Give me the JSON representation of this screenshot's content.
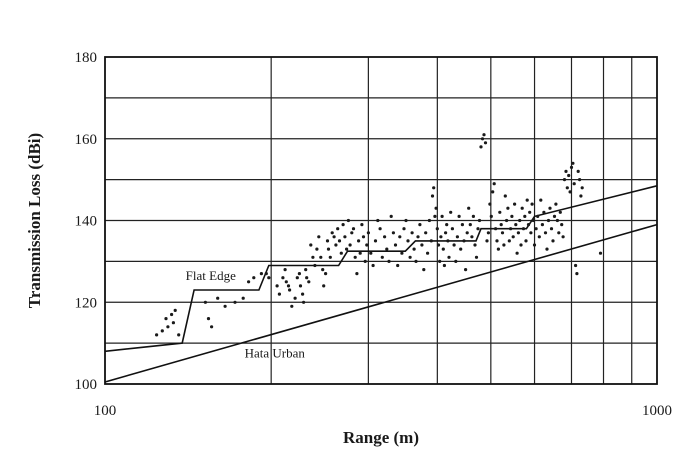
{
  "chart_data": {
    "type": "scatter",
    "title": "",
    "xlabel": "Range (m)",
    "ylabel": "Transmission Loss (dBi)",
    "x_scale": "log",
    "xlim": [
      100,
      1000
    ],
    "ylim": [
      100,
      180
    ],
    "x_tick_labels": [
      {
        "value": 100,
        "label": "100"
      },
      {
        "value": 1000,
        "label": "1000"
      }
    ],
    "y_tick_labels": [
      {
        "value": 100,
        "label": "100"
      },
      {
        "value": 120,
        "label": "120"
      },
      {
        "value": 140,
        "label": "140"
      },
      {
        "value": 160,
        "label": "160"
      },
      {
        "value": 180,
        "label": "180"
      }
    ],
    "grid": true,
    "annotations": [
      {
        "text": "Flat Edge",
        "x": 140,
        "y": 125.5
      },
      {
        "text": "Hata Urban",
        "x": 179,
        "y": 106.5
      }
    ],
    "lines": [
      {
        "label": "Flat Edge",
        "points": [
          [
            100,
            108
          ],
          [
            138,
            110
          ],
          [
            145,
            123
          ],
          [
            190,
            123
          ],
          [
            198,
            129
          ],
          [
            265,
            129
          ],
          [
            275,
            132.5
          ],
          [
            350,
            132.5
          ],
          [
            365,
            135
          ],
          [
            470,
            135
          ],
          [
            480,
            138
          ],
          [
            580,
            138
          ],
          [
            600,
            141
          ],
          [
            1000,
            148.5
          ]
        ]
      },
      {
        "label": "Hata Urban",
        "points": [
          [
            100,
            100.5
          ],
          [
            1000,
            139
          ]
        ]
      }
    ],
    "scatter": [
      [
        124,
        112
      ],
      [
        127,
        113
      ],
      [
        129,
        116
      ],
      [
        130,
        114
      ],
      [
        132,
        117
      ],
      [
        133,
        115
      ],
      [
        134,
        118
      ],
      [
        136,
        112
      ],
      [
        152,
        120
      ],
      [
        154,
        116
      ],
      [
        156,
        114
      ],
      [
        160,
        121
      ],
      [
        165,
        119
      ],
      [
        172,
        120
      ],
      [
        178,
        121
      ],
      [
        182,
        125
      ],
      [
        186,
        126
      ],
      [
        192,
        127
      ],
      [
        196,
        127
      ],
      [
        198,
        126
      ],
      [
        205,
        124
      ],
      [
        207,
        122
      ],
      [
        210,
        126
      ],
      [
        212,
        128
      ],
      [
        213,
        125
      ],
      [
        215,
        124
      ],
      [
        216,
        123
      ],
      [
        218,
        119
      ],
      [
        221,
        121
      ],
      [
        223,
        126
      ],
      [
        225,
        127
      ],
      [
        226,
        124
      ],
      [
        228,
        122
      ],
      [
        229,
        120
      ],
      [
        231,
        128
      ],
      [
        232,
        126
      ],
      [
        234,
        125
      ],
      [
        236,
        134
      ],
      [
        238,
        131
      ],
      [
        240,
        129
      ],
      [
        242,
        133
      ],
      [
        244,
        136
      ],
      [
        246,
        131
      ],
      [
        248,
        128
      ],
      [
        249,
        124
      ],
      [
        251,
        127
      ],
      [
        253,
        135
      ],
      [
        254,
        133
      ],
      [
        256,
        131
      ],
      [
        258,
        137
      ],
      [
        260,
        136
      ],
      [
        262,
        134
      ],
      [
        264,
        138
      ],
      [
        266,
        135
      ],
      [
        268,
        132
      ],
      [
        270,
        139
      ],
      [
        272,
        136
      ],
      [
        274,
        133
      ],
      [
        276,
        140
      ],
      [
        278,
        134
      ],
      [
        280,
        137
      ],
      [
        282,
        138
      ],
      [
        284,
        131
      ],
      [
        286,
        127
      ],
      [
        288,
        135
      ],
      [
        290,
        132
      ],
      [
        292,
        139
      ],
      [
        294,
        136
      ],
      [
        296,
        130
      ],
      [
        298,
        134
      ],
      [
        300,
        137
      ],
      [
        303,
        132
      ],
      [
        306,
        129
      ],
      [
        309,
        135
      ],
      [
        312,
        140
      ],
      [
        315,
        138
      ],
      [
        318,
        131
      ],
      [
        321,
        136
      ],
      [
        324,
        133
      ],
      [
        327,
        130
      ],
      [
        330,
        141
      ],
      [
        333,
        137
      ],
      [
        336,
        134
      ],
      [
        339,
        129
      ],
      [
        342,
        136
      ],
      [
        345,
        132
      ],
      [
        348,
        138
      ],
      [
        351,
        140
      ],
      [
        354,
        135
      ],
      [
        357,
        131
      ],
      [
        360,
        137
      ],
      [
        363,
        133
      ],
      [
        366,
        130
      ],
      [
        369,
        136
      ],
      [
        372,
        139
      ],
      [
        375,
        134
      ],
      [
        378,
        128
      ],
      [
        381,
        137
      ],
      [
        384,
        132
      ],
      [
        387,
        140
      ],
      [
        390,
        135
      ],
      [
        392,
        146
      ],
      [
        394,
        148
      ],
      [
        396,
        141
      ],
      [
        398,
        143
      ],
      [
        400,
        138
      ],
      [
        402,
        134
      ],
      [
        404,
        130
      ],
      [
        406,
        136
      ],
      [
        408,
        141
      ],
      [
        410,
        133
      ],
      [
        412,
        129
      ],
      [
        414,
        137
      ],
      [
        416,
        139
      ],
      [
        418,
        135
      ],
      [
        420,
        131
      ],
      [
        423,
        142
      ],
      [
        426,
        138
      ],
      [
        429,
        134
      ],
      [
        432,
        130
      ],
      [
        435,
        136
      ],
      [
        438,
        141
      ],
      [
        441,
        133
      ],
      [
        444,
        139
      ],
      [
        447,
        135
      ],
      [
        450,
        128
      ],
      [
        453,
        137
      ],
      [
        456,
        143
      ],
      [
        459,
        139
      ],
      [
        462,
        136
      ],
      [
        465,
        141
      ],
      [
        468,
        134
      ],
      [
        471,
        131
      ],
      [
        474,
        138
      ],
      [
        477,
        140
      ],
      [
        480,
        158
      ],
      [
        483,
        160
      ],
      [
        486,
        161
      ],
      [
        489,
        159
      ],
      [
        492,
        135
      ],
      [
        495,
        137
      ],
      [
        498,
        144
      ],
      [
        501,
        141
      ],
      [
        504,
        147
      ],
      [
        507,
        149
      ],
      [
        510,
        138
      ],
      [
        513,
        135
      ],
      [
        516,
        133
      ],
      [
        519,
        142
      ],
      [
        522,
        139
      ],
      [
        525,
        137
      ],
      [
        528,
        134
      ],
      [
        531,
        146
      ],
      [
        534,
        140
      ],
      [
        537,
        143
      ],
      [
        540,
        135
      ],
      [
        543,
        138
      ],
      [
        546,
        141
      ],
      [
        549,
        136
      ],
      [
        552,
        144
      ],
      [
        555,
        139
      ],
      [
        558,
        132
      ],
      [
        561,
        137
      ],
      [
        564,
        140
      ],
      [
        567,
        134
      ],
      [
        570,
        143
      ],
      [
        573,
        138
      ],
      [
        576,
        141
      ],
      [
        579,
        135
      ],
      [
        582,
        145
      ],
      [
        585,
        139
      ],
      [
        588,
        142
      ],
      [
        591,
        137
      ],
      [
        594,
        144
      ],
      [
        597,
        140
      ],
      [
        600,
        134
      ],
      [
        604,
        138
      ],
      [
        608,
        141
      ],
      [
        612,
        136
      ],
      [
        616,
        145
      ],
      [
        620,
        139
      ],
      [
        624,
        142
      ],
      [
        628,
        137
      ],
      [
        632,
        133
      ],
      [
        636,
        140
      ],
      [
        640,
        143
      ],
      [
        644,
        138
      ],
      [
        648,
        135
      ],
      [
        652,
        141
      ],
      [
        656,
        144
      ],
      [
        660,
        140
      ],
      [
        664,
        137
      ],
      [
        668,
        142
      ],
      [
        672,
        139
      ],
      [
        676,
        136
      ],
      [
        680,
        150
      ],
      [
        684,
        152
      ],
      [
        688,
        148
      ],
      [
        692,
        151
      ],
      [
        696,
        147
      ],
      [
        700,
        153
      ],
      [
        704,
        154
      ],
      [
        708,
        149
      ],
      [
        712,
        129
      ],
      [
        716,
        127
      ],
      [
        720,
        152
      ],
      [
        724,
        150
      ],
      [
        728,
        146
      ],
      [
        732,
        148
      ],
      [
        790,
        132
      ]
    ]
  }
}
